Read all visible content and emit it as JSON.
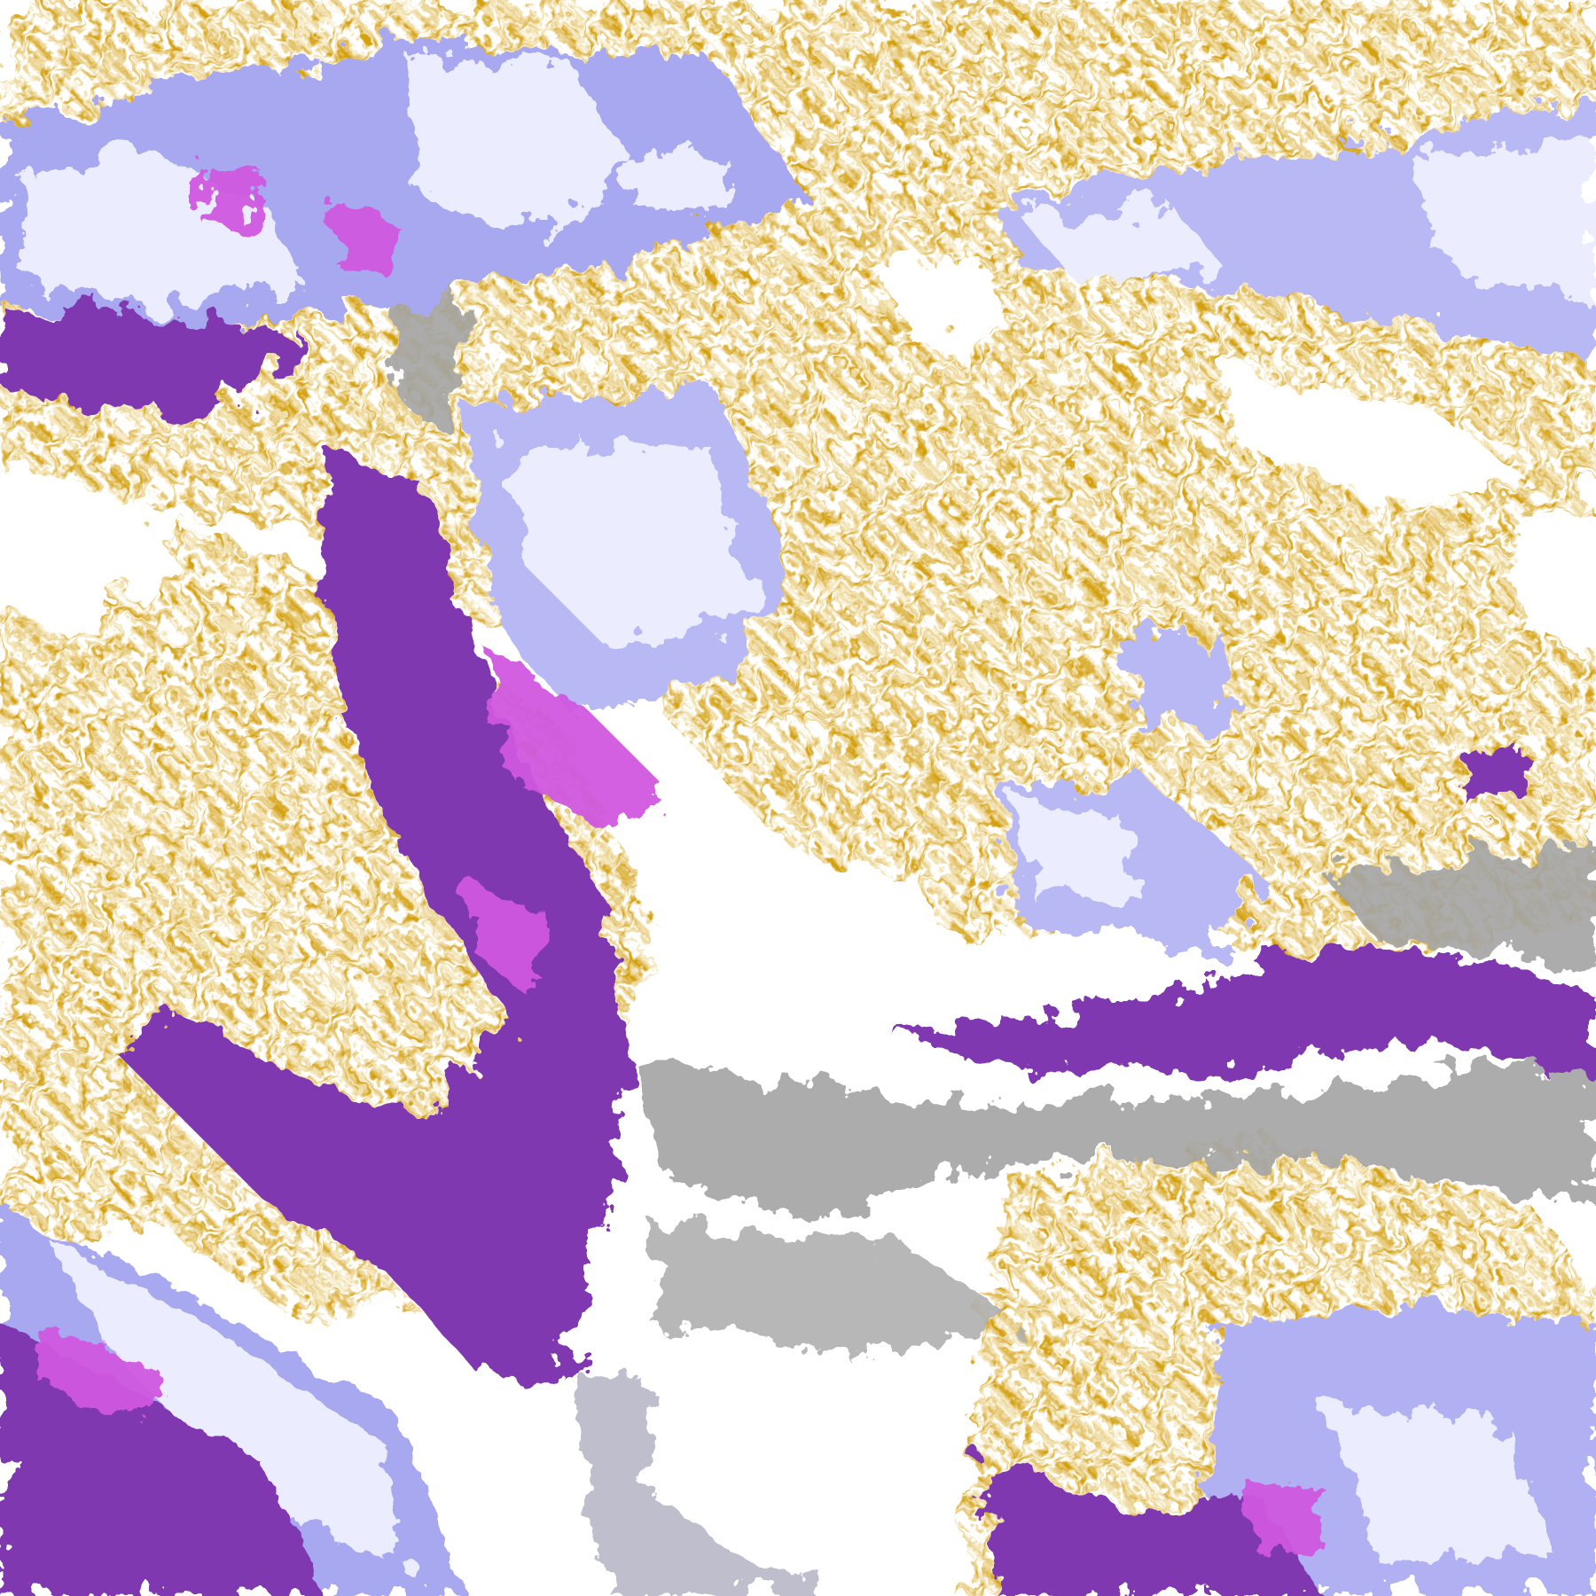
{
  "image": {
    "kind": "false-color satellite cloud imagery",
    "palette": {
      "clear": "#ffffff",
      "gold": "#d4a010",
      "purple": "#8038b0",
      "magenta": "#d058e0",
      "lavender": "#ececff",
      "periwinkle": "#a8a8f0",
      "gray": "#a4a4a4"
    }
  }
}
